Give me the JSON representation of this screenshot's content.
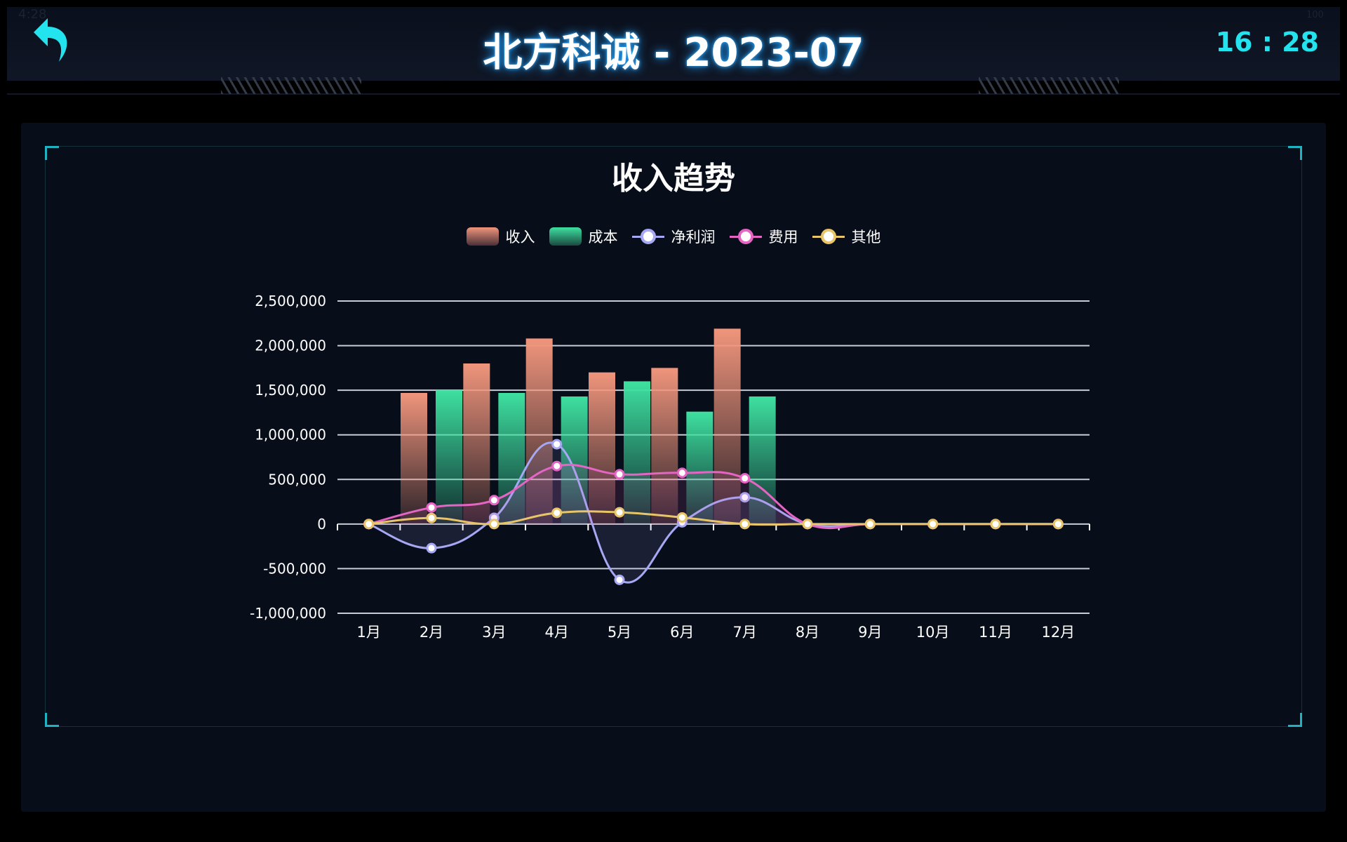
{
  "status_bar": {
    "time": "4:28",
    "battery": "100"
  },
  "header": {
    "title": "北方科诚 - 2023-07",
    "clock": "16 : 28"
  },
  "colors": {
    "revenue": "#f0957c",
    "cost": "#3ee0a0",
    "net": "#a6a8f4",
    "fee": "#e565c4",
    "other": "#e9c56a",
    "accent": "#22e3ee"
  },
  "chart_data": {
    "type": "bar+line",
    "title": "收入趋势",
    "categories": [
      "1月",
      "2月",
      "3月",
      "4月",
      "5月",
      "6月",
      "7月",
      "8月",
      "9月",
      "10月",
      "11月",
      "12月"
    ],
    "ylim": [
      -1000000,
      2500000
    ],
    "yticks": [
      "2,500,000",
      "2,000,000",
      "1,500,000",
      "1,000,000",
      "500,000",
      "0",
      "-500,000",
      "-1,000,000"
    ],
    "grid": true,
    "legend_position": "top-center",
    "series": [
      {
        "name": "收入",
        "kind": "bar",
        "values": [
          0,
          1470000,
          1800000,
          2080000,
          1700000,
          1750000,
          2190000,
          0,
          0,
          0,
          0,
          0
        ]
      },
      {
        "name": "成本",
        "kind": "bar",
        "values": [
          0,
          1500000,
          1470000,
          1430000,
          1600000,
          1260000,
          1430000,
          0,
          0,
          0,
          0,
          0
        ]
      },
      {
        "name": "净利润",
        "kind": "line",
        "values": [
          0,
          -270000,
          70000,
          895000,
          -625000,
          20000,
          300000,
          0,
          0,
          0,
          0,
          0
        ]
      },
      {
        "name": "费用",
        "kind": "line",
        "values": [
          0,
          185000,
          268000,
          650000,
          558000,
          574000,
          513000,
          0,
          0,
          0,
          0,
          0
        ]
      },
      {
        "name": "其他",
        "kind": "line",
        "values": [
          0,
          68000,
          0,
          126000,
          132000,
          74000,
          0,
          0,
          0,
          0,
          0,
          0
        ]
      }
    ]
  }
}
